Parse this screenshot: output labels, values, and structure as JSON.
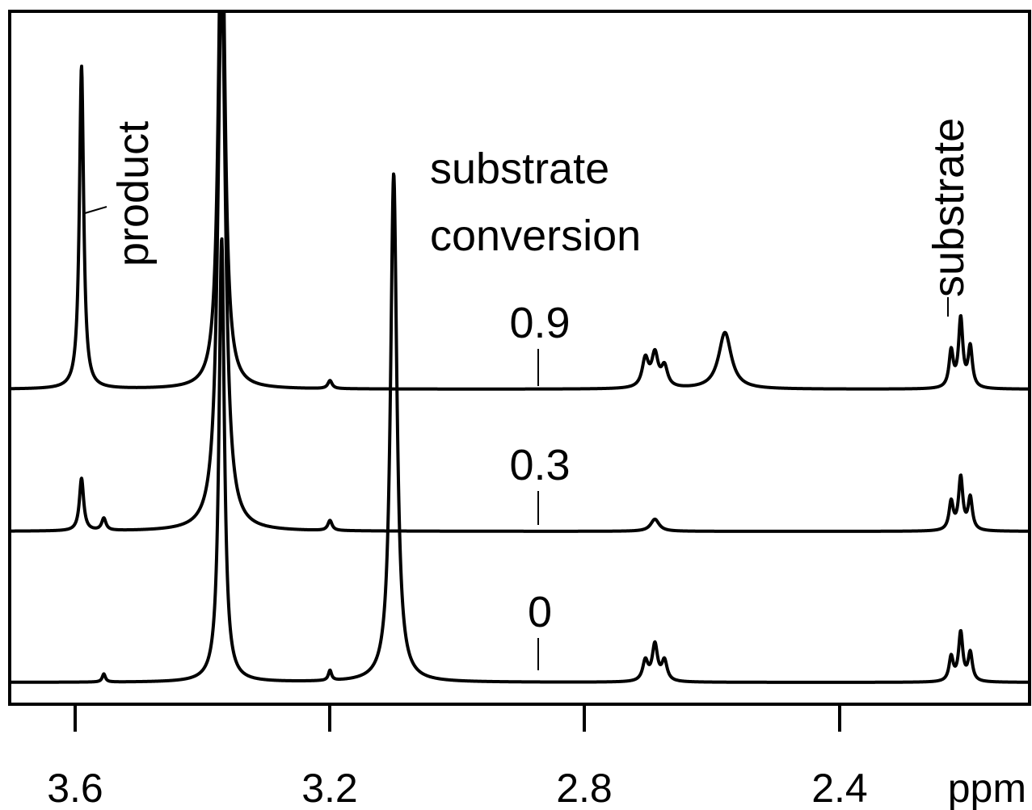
{
  "chart_data": {
    "type": "line",
    "title": "",
    "xlabel": "ppm",
    "ylabel": "",
    "x_axis": {
      "reversed": true,
      "xlim": [
        3.7,
        2.15
      ],
      "ticks": [
        3.6,
        3.2,
        2.8,
        2.4
      ],
      "tick_labels": [
        "3.6",
        "3.2",
        "2.8",
        "2.4"
      ],
      "unit_label": "ppm"
    },
    "grid": false,
    "legend": "none",
    "annotations": {
      "conversion_title_line1": "substrate",
      "conversion_title_line2": "conversion",
      "product_label": "product",
      "substrate_label": "substrate"
    },
    "series": [
      {
        "name": "0.9",
        "peaks": [
          {
            "ppm": 3.59,
            "height": 0.8,
            "width": 0.004
          },
          {
            "ppm": 3.37,
            "height": 1.3,
            "width": 0.006
          },
          {
            "ppm": 3.2,
            "height": 0.02,
            "width": 0.004
          },
          {
            "ppm": 2.705,
            "height": 0.07,
            "width": 0.006
          },
          {
            "ppm": 2.69,
            "height": 0.08,
            "width": 0.006
          },
          {
            "ppm": 2.675,
            "height": 0.05,
            "width": 0.006
          },
          {
            "ppm": 2.58,
            "height": 0.14,
            "width": 0.012
          },
          {
            "ppm": 2.225,
            "height": 0.09,
            "width": 0.004
          },
          {
            "ppm": 2.21,
            "height": 0.17,
            "width": 0.004
          },
          {
            "ppm": 2.195,
            "height": 0.1,
            "width": 0.004
          }
        ]
      },
      {
        "name": "0.3",
        "peaks": [
          {
            "ppm": 3.59,
            "height": 0.13,
            "width": 0.004
          },
          {
            "ppm": 3.555,
            "height": 0.03,
            "width": 0.004
          },
          {
            "ppm": 3.37,
            "height": 1.4,
            "width": 0.007
          },
          {
            "ppm": 3.2,
            "height": 0.025,
            "width": 0.004
          },
          {
            "ppm": 2.69,
            "height": 0.03,
            "width": 0.008
          },
          {
            "ppm": 2.225,
            "height": 0.07,
            "width": 0.004
          },
          {
            "ppm": 2.21,
            "height": 0.13,
            "width": 0.004
          },
          {
            "ppm": 2.195,
            "height": 0.08,
            "width": 0.004
          }
        ]
      },
      {
        "name": "0",
        "peaks": [
          {
            "ppm": 3.555,
            "height": 0.02,
            "width": 0.003
          },
          {
            "ppm": 3.37,
            "height": 1.1,
            "width": 0.005
          },
          {
            "ppm": 3.2,
            "height": 0.025,
            "width": 0.003
          },
          {
            "ppm": 3.1,
            "height": 1.26,
            "width": 0.006
          },
          {
            "ppm": 2.705,
            "height": 0.05,
            "width": 0.005
          },
          {
            "ppm": 2.69,
            "height": 0.09,
            "width": 0.005
          },
          {
            "ppm": 2.675,
            "height": 0.05,
            "width": 0.005
          },
          {
            "ppm": 2.225,
            "height": 0.06,
            "width": 0.004
          },
          {
            "ppm": 2.21,
            "height": 0.12,
            "width": 0.004
          },
          {
            "ppm": 2.195,
            "height": 0.07,
            "width": 0.004
          }
        ]
      }
    ]
  }
}
